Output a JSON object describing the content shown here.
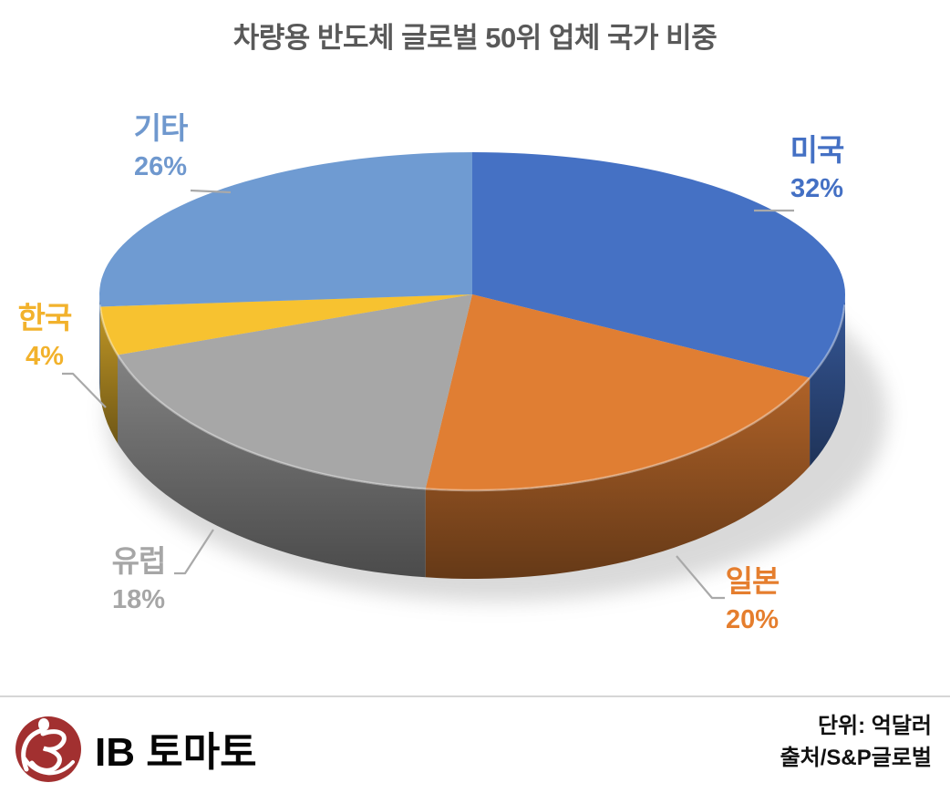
{
  "title": "차량용 반도체 글로벌 50위 업체 국가 비중",
  "chart_data": {
    "type": "pie",
    "style": "3d",
    "title": "차량용 반도체 글로벌 50위 업체 국가 비중",
    "categories": [
      "미국",
      "일본",
      "유럽",
      "한국",
      "기타"
    ],
    "values": [
      32,
      20,
      18,
      4,
      26
    ],
    "display_values": [
      "32%",
      "20%",
      "18%",
      "4%",
      "26%"
    ],
    "colors": [
      "#4571C4",
      "#E07E33",
      "#A7A7A7",
      "#F7C230",
      "#6F9BD2"
    ],
    "label_colors": [
      "#4470C4",
      "#E57E2E",
      "#A6A6A6",
      "#F2B22C",
      "#6F98CE"
    ],
    "start_angle_deg": 0,
    "direction": "clockwise",
    "legend": "none",
    "unit_note": "단위: 억달러",
    "source_note": "출처/S&P글로벌"
  },
  "footer": {
    "brand": "IB 토마토",
    "unit_label": "단위: 억달러",
    "source_label": "출처/S&P글로벌"
  }
}
